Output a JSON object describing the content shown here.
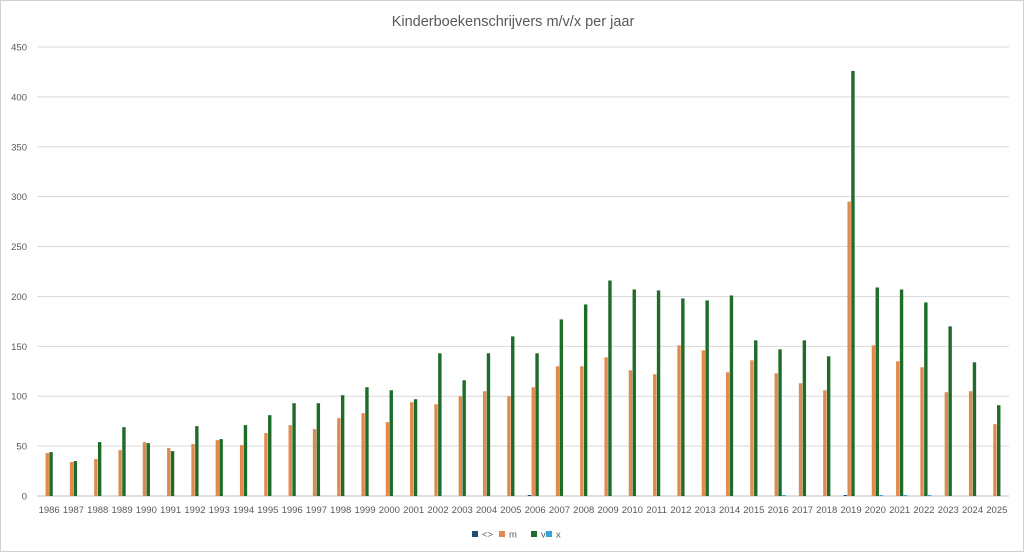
{
  "chart_data": {
    "type": "bar",
    "title": "Kinderboekenschrijvers m/v/x per jaar",
    "xlabel": "",
    "ylabel": "",
    "ylim": [
      0,
      450
    ],
    "yticks": [
      0,
      50,
      100,
      150,
      200,
      250,
      300,
      350,
      400,
      450
    ],
    "grid": true,
    "legend_position": "bottom",
    "categories": [
      "1986",
      "1987",
      "1988",
      "1989",
      "1990",
      "1991",
      "1992",
      "1993",
      "1994",
      "1995",
      "1996",
      "1997",
      "1998",
      "1999",
      "2000",
      "2001",
      "2002",
      "2003",
      "2004",
      "2005",
      "2006",
      "2007",
      "2008",
      "2009",
      "2010",
      "2011",
      "2012",
      "2013",
      "2014",
      "2015",
      "2016",
      "2017",
      "2018",
      "2019",
      "2020",
      "2021",
      "2022",
      "2023",
      "2024",
      "2025"
    ],
    "series": [
      {
        "name": "<>",
        "color": "#1f4e79",
        "values": [
          0,
          0,
          0,
          0,
          0,
          0,
          0,
          0,
          0,
          0,
          0,
          0,
          0,
          0,
          0,
          0,
          0,
          0,
          0,
          0,
          1,
          0,
          0,
          0,
          0,
          0,
          0,
          0,
          0,
          0,
          0,
          0,
          0,
          1,
          0,
          0,
          0,
          0,
          0,
          0
        ]
      },
      {
        "name": "m",
        "color": "#e08a4e",
        "values": [
          43,
          34,
          37,
          46,
          54,
          48,
          52,
          56,
          51,
          63,
          71,
          67,
          78,
          83,
          74,
          94,
          92,
          100,
          105,
          100,
          109,
          130,
          130,
          139,
          126,
          122,
          151,
          146,
          124,
          136,
          123,
          113,
          106,
          295,
          151,
          135,
          129,
          104,
          105,
          72
        ]
      },
      {
        "name": "v",
        "color": "#1e6b2a",
        "values": [
          44,
          35,
          54,
          69,
          53,
          45,
          70,
          57,
          71,
          81,
          93,
          93,
          101,
          109,
          106,
          97,
          143,
          116,
          143,
          160,
          143,
          177,
          192,
          216,
          207,
          206,
          198,
          196,
          201,
          156,
          147,
          156,
          140,
          426,
          209,
          207,
          194,
          170,
          134,
          91
        ]
      },
      {
        "name": "x",
        "color": "#2ea7d8",
        "values": [
          0,
          0,
          0,
          0,
          0,
          0,
          0,
          0,
          0,
          0,
          0,
          0,
          0,
          0,
          0,
          0,
          0,
          0,
          0,
          0,
          0,
          0,
          0,
          0,
          0,
          0,
          0,
          0,
          0,
          0,
          1,
          0,
          0,
          0,
          1,
          1,
          1,
          0,
          0,
          0
        ]
      }
    ]
  }
}
